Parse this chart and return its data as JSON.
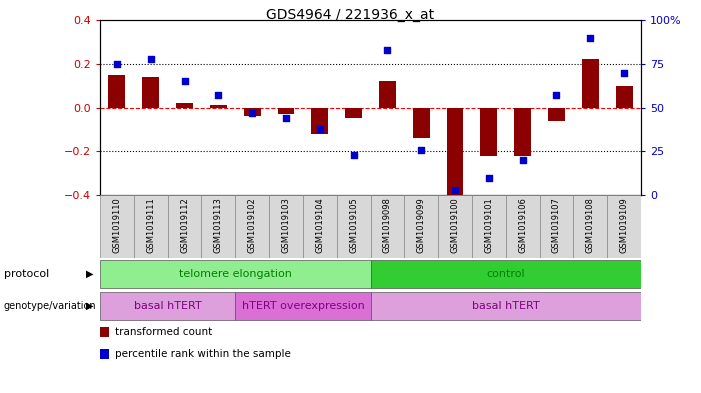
{
  "title": "GDS4964 / 221936_x_at",
  "samples": [
    "GSM1019110",
    "GSM1019111",
    "GSM1019112",
    "GSM1019113",
    "GSM1019102",
    "GSM1019103",
    "GSM1019104",
    "GSM1019105",
    "GSM1019098",
    "GSM1019099",
    "GSM1019100",
    "GSM1019101",
    "GSM1019106",
    "GSM1019107",
    "GSM1019108",
    "GSM1019109"
  ],
  "bar_values": [
    0.15,
    0.14,
    0.02,
    0.01,
    -0.04,
    -0.03,
    -0.12,
    -0.05,
    0.12,
    -0.14,
    -0.42,
    -0.22,
    -0.22,
    -0.06,
    0.22,
    0.1
  ],
  "dot_values": [
    75,
    78,
    65,
    57,
    47,
    44,
    38,
    23,
    83,
    26,
    3,
    10,
    20,
    57,
    90,
    70
  ],
  "ylim": [
    -0.4,
    0.4
  ],
  "y2lim": [
    0,
    100
  ],
  "yticks": [
    -0.4,
    -0.2,
    0.0,
    0.2,
    0.4
  ],
  "y2ticks": [
    0,
    25,
    50,
    75,
    100
  ],
  "hlines_dotted": [
    0.2,
    -0.2
  ],
  "hline_zero": 0.0,
  "bar_color": "#8B0000",
  "dot_color": "#0000CD",
  "protocol_groups": [
    {
      "label": "telomere elongation",
      "start": 0,
      "end": 8,
      "color": "#90EE90"
    },
    {
      "label": "control",
      "start": 8,
      "end": 16,
      "color": "#32CD32"
    }
  ],
  "genotype_groups": [
    {
      "label": "basal hTERT",
      "start": 0,
      "end": 4,
      "color": "#DDA0DD"
    },
    {
      "label": "hTERT overexpression",
      "start": 4,
      "end": 8,
      "color": "#DA70D6"
    },
    {
      "label": "basal hTERT",
      "start": 8,
      "end": 16,
      "color": "#DDA0DD"
    }
  ],
  "legend_items": [
    {
      "label": "transformed count",
      "color": "#8B0000"
    },
    {
      "label": "percentile rank within the sample",
      "color": "#0000CD"
    }
  ],
  "bg_color": "#FFFFFF",
  "tick_label_color_left": "#CC0000",
  "tick_label_color_right": "#0000CC",
  "protocol_text_color": "#008000",
  "genotype_text_color": "#800080"
}
